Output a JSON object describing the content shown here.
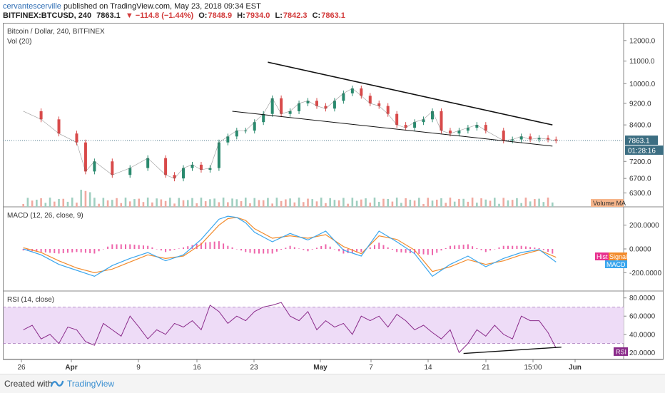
{
  "header": {
    "user": "cervantescerville",
    "published_text": "published on TradingView.com, May 23, 2018 09:34 EST",
    "symbol_line": "BITFINEX:BTCUSD, 240",
    "last": "7863.1",
    "change": "▼ −114.8 (−1.44%)",
    "open_label": "O:",
    "open": "7848.9",
    "high_label": "H:",
    "high": "7934.0",
    "low_label": "L:",
    "low": "7842.3",
    "close_label": "C:",
    "close": "7863.1"
  },
  "footer": {
    "created": "Created with",
    "brand": "TradingView"
  },
  "colors": {
    "up": "#2a8a6e",
    "down": "#d84a4a",
    "macd": "#3aa6ee",
    "signal": "#f28b2c",
    "hist": "#e8318f",
    "rsi": "#8a2b8a",
    "rsi_band": "#eedcf7",
    "price_tag": "#3c6e82"
  },
  "chart_data": [
    {
      "type": "line",
      "title": "Bitcoin / Dollar, 240, BITFINEX",
      "subtitle": "Vol (20)",
      "y_scale": "log",
      "y_ticks": [
        "12000.0",
        "11000.0",
        "10000.0",
        "9200.0",
        "8400.0",
        "7200.0",
        "6700.0",
        "6300.0"
      ],
      "x_ticks": [
        "26",
        "Apr",
        "9",
        "16",
        "23",
        "May",
        "7",
        "14",
        "21",
        "15:00",
        "Jun"
      ],
      "last_price_label": "7863.1",
      "countdown_label": "01:28:16",
      "volume_legend": "Volume MA",
      "x_day": [
        0,
        2,
        4,
        6,
        7,
        8,
        10,
        12,
        14,
        16,
        17,
        18,
        19,
        20,
        21,
        22,
        23,
        24,
        25,
        26,
        27,
        28,
        29,
        30,
        31,
        32,
        33,
        34,
        35,
        36,
        37,
        38,
        39,
        40,
        41,
        42,
        43,
        44,
        45,
        46,
        47,
        48,
        49,
        50,
        51,
        52,
        54,
        55,
        56,
        57,
        58,
        59,
        59.9
      ],
      "close": [
        8900,
        8600,
        8100,
        7800,
        6900,
        7200,
        6800,
        7000,
        7300,
        6800,
        6700,
        7000,
        7100,
        6950,
        7000,
        7800,
        8000,
        8200,
        8200,
        8500,
        8800,
        9400,
        8800,
        8900,
        9200,
        9300,
        9100,
        9000,
        9300,
        9600,
        9800,
        9500,
        9200,
        9100,
        8800,
        8400,
        8300,
        8500,
        8600,
        8900,
        8200,
        8100,
        8200,
        8300,
        8400,
        8200,
        7863.1,
        7900,
        8000,
        7900,
        7950,
        7900,
        7863.1
      ],
      "trendlines": [
        {
          "x": [
            27.5,
            59.5
          ],
          "y": [
            10950,
            8400
          ]
        },
        {
          "x": [
            23.5,
            59.5
          ],
          "y": [
            8900,
            7680
          ]
        }
      ]
    },
    {
      "type": "line",
      "title": "MACD (12, 26, close, 9)",
      "y_ticks": [
        "200.0000",
        "0.0000",
        "-200.0000"
      ],
      "legend": [
        "Hist",
        "Signal",
        "MACD"
      ],
      "x_day": [
        0,
        2,
        4,
        6,
        8,
        10,
        12,
        14,
        16,
        18,
        20,
        22,
        23,
        24,
        25,
        26,
        28,
        30,
        32,
        34,
        36,
        38,
        40,
        42,
        44,
        46,
        48,
        50,
        52,
        54,
        56,
        58,
        59.9
      ],
      "macd": [
        0,
        -50,
        -130,
        -180,
        -230,
        -140,
        -80,
        -30,
        -100,
        -50,
        80,
        250,
        275,
        265,
        220,
        140,
        60,
        130,
        75,
        150,
        -10,
        -60,
        150,
        60,
        -40,
        -230,
        -130,
        -60,
        -150,
        -80,
        -30,
        -5,
        -110
      ],
      "signal": [
        10,
        -30,
        -100,
        -160,
        -200,
        -170,
        -110,
        -50,
        -80,
        -60,
        40,
        200,
        255,
        265,
        240,
        170,
        90,
        110,
        90,
        120,
        20,
        -40,
        110,
        80,
        -10,
        -190,
        -150,
        -90,
        -130,
        -100,
        -50,
        -10,
        -70
      ]
    },
    {
      "type": "line",
      "title": "RSI (14, close)",
      "y_ticks": [
        "80.0000",
        "60.0000",
        "40.0000",
        "20.0000"
      ],
      "legend": [
        "RSI"
      ],
      "band": [
        30,
        70
      ],
      "x_day": [
        0,
        1,
        2,
        3,
        4,
        5,
        6,
        7,
        8,
        9,
        10,
        11,
        12,
        13,
        14,
        15,
        16,
        17,
        18,
        19,
        20,
        21,
        22,
        23,
        24,
        25,
        26,
        27,
        28,
        29,
        30,
        31,
        32,
        33,
        34,
        35,
        36,
        37,
        38,
        39,
        40,
        41,
        42,
        43,
        44,
        45,
        46,
        47,
        48,
        49,
        50,
        51,
        52,
        53,
        54,
        55,
        56,
        57,
        58,
        59,
        59.9
      ],
      "rsi": [
        45,
        50,
        35,
        40,
        30,
        48,
        45,
        32,
        28,
        52,
        45,
        38,
        60,
        48,
        35,
        45,
        40,
        52,
        48,
        55,
        45,
        72,
        65,
        52,
        60,
        55,
        65,
        70,
        72,
        75,
        60,
        55,
        65,
        45,
        55,
        48,
        52,
        40,
        60,
        55,
        60,
        48,
        62,
        55,
        45,
        50,
        42,
        35,
        45,
        20,
        30,
        45,
        38,
        50,
        40,
        35,
        60,
        55,
        55,
        42,
        25
      ],
      "divergence_line": {
        "x": [
          49.5,
          60.5
        ],
        "y": [
          19,
          26
        ]
      }
    }
  ]
}
